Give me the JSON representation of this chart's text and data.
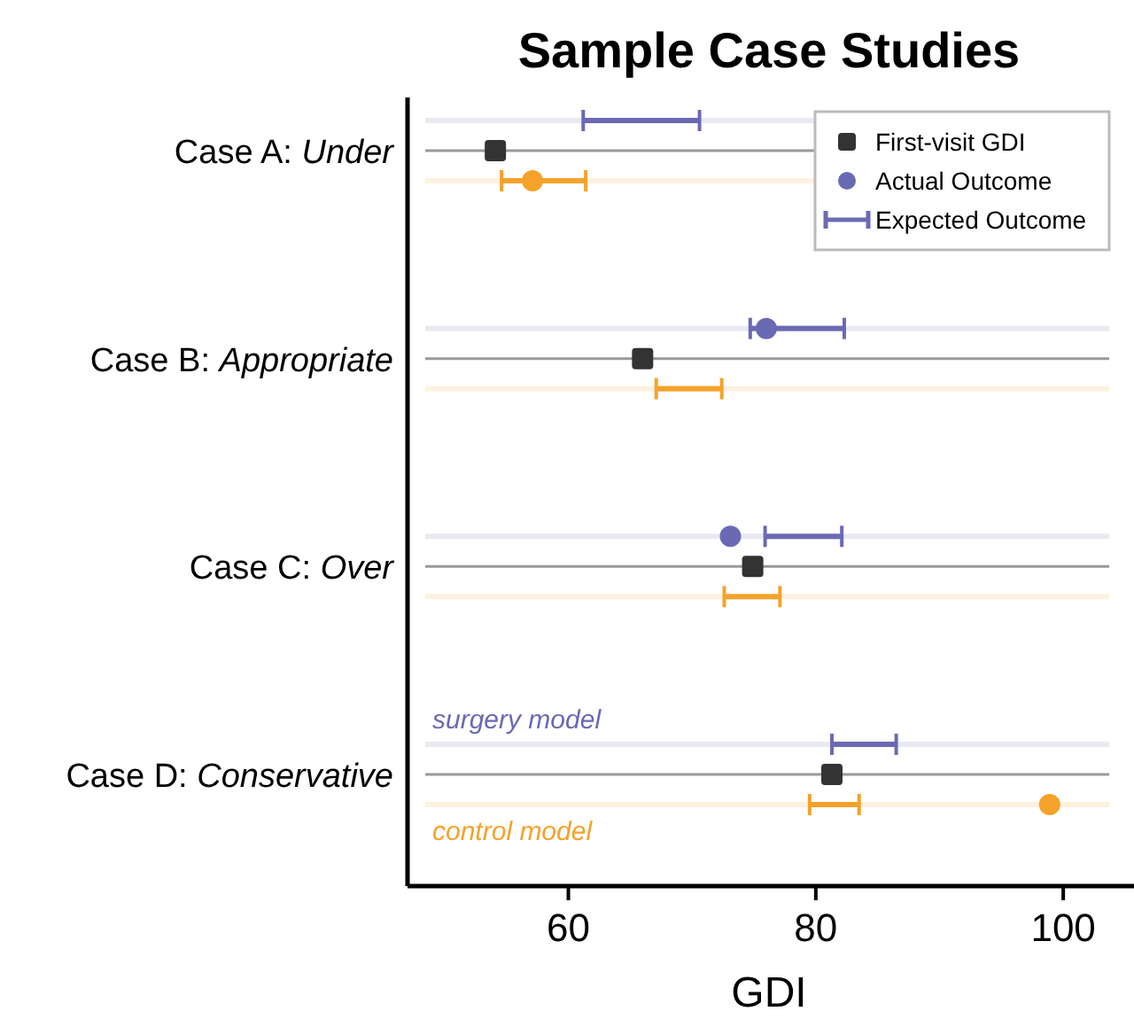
{
  "chart_data": {
    "type": "bar",
    "title": "Sample Case Studies",
    "xlabel": "GDI",
    "orientation": "horizontal",
    "categories": [
      "Case A: Under",
      "Case B: Appropriate",
      "Case C: Over",
      "Case D: Conservative"
    ],
    "xlim": [
      47,
      104
    ],
    "xticks": [
      60,
      80,
      100
    ],
    "grid": "y",
    "legend": "top right",
    "annotations": [
      "surgery model",
      "control model"
    ],
    "series": [
      {
        "name": "Expected Outcome",
        "color": "#6a6ab4",
        "base": [
          61.2,
          74.7,
          75.9,
          81.3
        ],
        "values": [
          9.4,
          7.6,
          6.2,
          5.2
        ]
      },
      {
        "name": "Actual Outcome",
        "type": "scatter",
        "marker": "circle",
        "color": "#6a6ab4",
        "values": [
          null,
          76,
          73.1,
          null
        ]
      },
      {
        "name": "First-visit GDI",
        "type": "scatter",
        "marker": "square",
        "color": "#333333",
        "values": [
          54.1,
          66,
          74.9,
          81.3
        ]
      },
      {
        "color": "#f5a22a",
        "base": [
          54.6,
          67.1,
          72.6,
          79.5
        ],
        "values": [
          6.8,
          5.3,
          4.5,
          4
        ]
      },
      {
        "type": "scatter",
        "marker": "circle",
        "color": "#f5a22a",
        "values": [
          57.1,
          null,
          null,
          98.9
        ]
      }
    ]
  }
}
